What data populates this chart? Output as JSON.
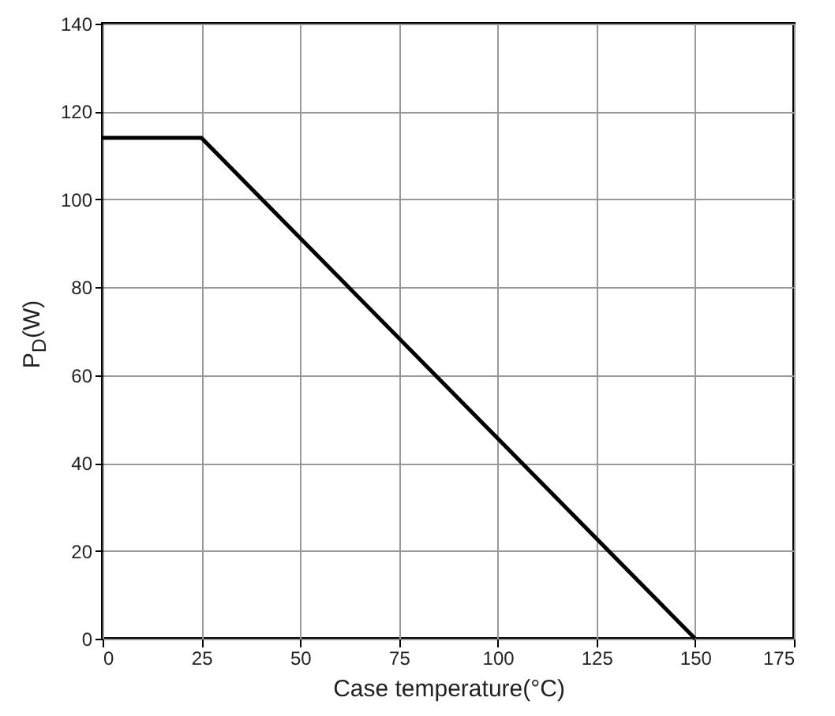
{
  "chart_data": {
    "type": "line",
    "xlabel": "Case temperature(°C)",
    "ylabel": "P$_{D}$(W)",
    "x": [
      0,
      25,
      150
    ],
    "series": [
      {
        "color": "#000000",
        "values": [
          114,
          114,
          0
        ]
      }
    ],
    "xlim": [
      0,
      175
    ],
    "xticks": [
      0,
      25,
      50,
      75,
      100,
      125,
      150,
      175
    ],
    "ylim": [
      0,
      140
    ],
    "yticks": [
      0,
      20,
      40,
      60,
      80,
      100,
      120,
      140
    ],
    "grid": true,
    "legend": false,
    "marker": "none",
    "line_style": "solid"
  }
}
